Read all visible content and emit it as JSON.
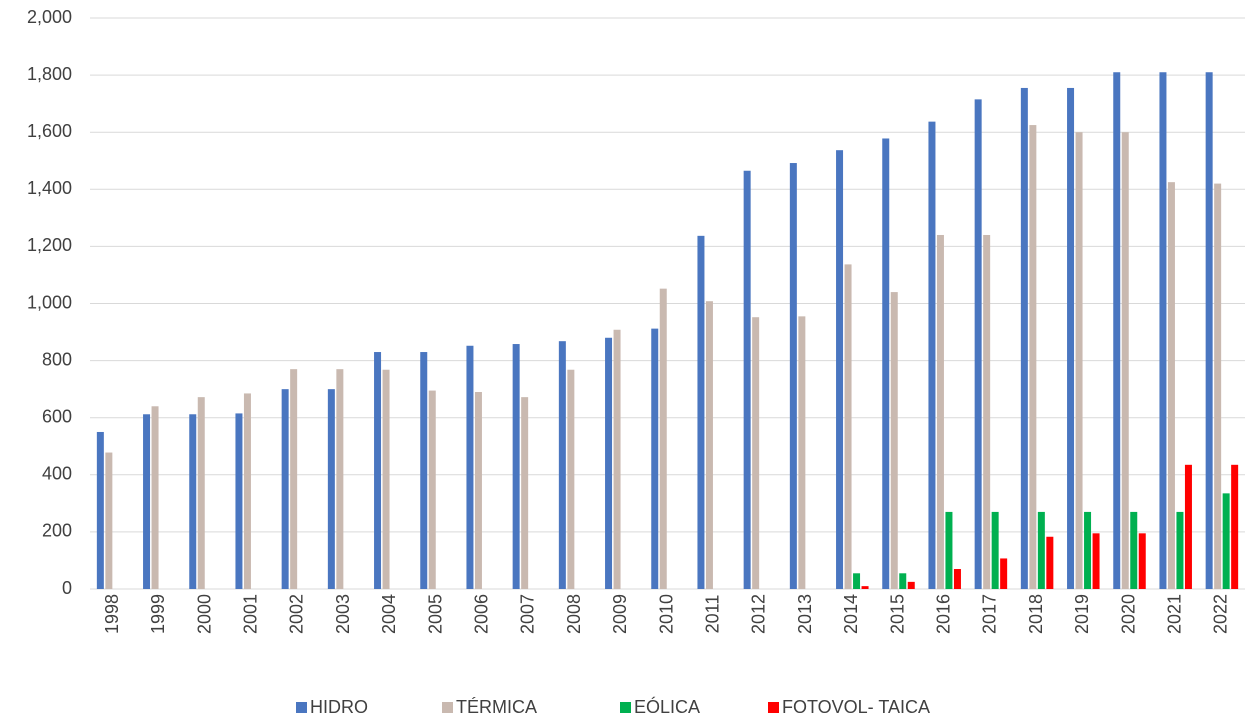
{
  "chart_data": {
    "type": "bar",
    "categories": [
      "1998",
      "1999",
      "2000",
      "2001",
      "2002",
      "2003",
      "2004",
      "2005",
      "2006",
      "2007",
      "2008",
      "2009",
      "2010",
      "2011",
      "2012",
      "2013",
      "2014",
      "2015",
      "2016",
      "2017",
      "2018",
      "2019",
      "2020",
      "2021",
      "2022"
    ],
    "series": [
      {
        "name": "HIDRO",
        "color": "#4a76c0",
        "values": [
          550,
          612,
          612,
          615,
          700,
          700,
          830,
          830,
          852,
          858,
          868,
          880,
          912,
          1237,
          1465,
          1492,
          1537,
          1578,
          1637,
          1715,
          1755,
          1755,
          1810,
          1810,
          1810
        ]
      },
      {
        "name": "TÉRMICA",
        "color": "#c9b9b0",
        "values": [
          478,
          640,
          672,
          685,
          770,
          770,
          768,
          695,
          690,
          672,
          768,
          908,
          1052,
          1008,
          952,
          955,
          1137,
          1040,
          1240,
          1240,
          1625,
          1600,
          1600,
          1425,
          1420
        ]
      },
      {
        "name": "EÓLICA",
        "color": "#00b050",
        "values": [
          null,
          null,
          null,
          null,
          null,
          null,
          null,
          null,
          null,
          null,
          null,
          null,
          null,
          null,
          null,
          null,
          55,
          55,
          270,
          270,
          270,
          270,
          270,
          270,
          335
        ]
      },
      {
        "name": "FOTOVOL- TAICA",
        "color": "#ff0000",
        "values": [
          null,
          null,
          null,
          null,
          null,
          null,
          null,
          null,
          null,
          null,
          null,
          null,
          null,
          null,
          null,
          null,
          10,
          25,
          70,
          107,
          183,
          195,
          195,
          435,
          435
        ]
      }
    ],
    "ylim": [
      0,
      2000
    ],
    "yticks": [
      0,
      200,
      400,
      600,
      800,
      {
        "value": 1000,
        "label": "1,000"
      },
      {
        "value": 1200,
        "label": "1,200"
      },
      {
        "value": 1400,
        "label": "1,400"
      },
      {
        "value": 1600,
        "label": "1,600"
      },
      {
        "value": 1800,
        "label": "1,800"
      },
      {
        "value": 2000,
        "label": "2,000"
      }
    ],
    "grid": true,
    "legend": "bottom"
  }
}
